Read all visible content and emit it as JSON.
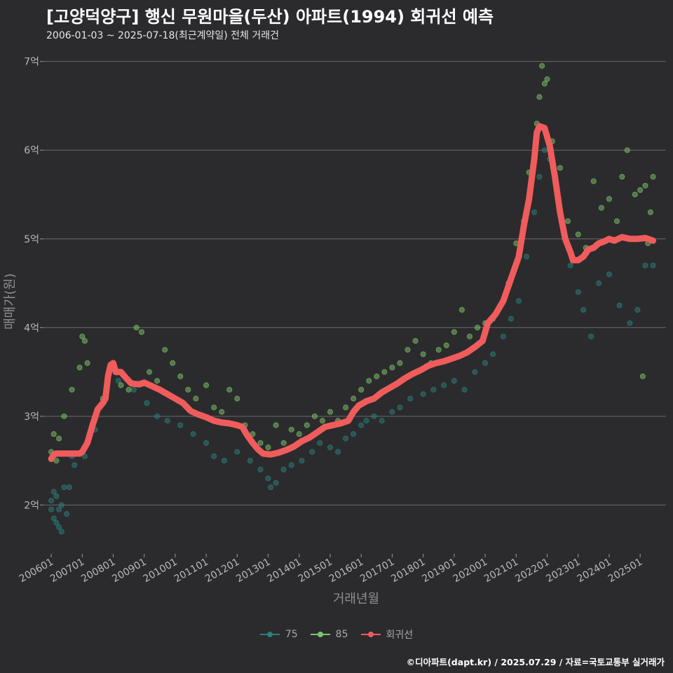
{
  "header": {
    "title": "[고양덕양구] 행신 무원마을(두산) 아파트(1994) 회귀선 예측",
    "subtitle": "2006-01-03 ~ 2025-07-18(최근계약일) 전체 거래건"
  },
  "credit": "©디아파트(dapt.kr) / 2025.07.29 / 자료=국토교통부 실거래가",
  "colors": {
    "background": "#2b2b2d",
    "grid": "#6b6b6b",
    "series_75": "#2c7f7b",
    "series_85": "#7ec46a",
    "regression": "#f05c5c"
  },
  "chart_data": {
    "type": "scatter",
    "xlabel": "거래년월",
    "ylabel": "매매가(원)",
    "x_range": [
      "2005-10",
      "2025-11"
    ],
    "ylim": [
      1.45,
      7.1
    ],
    "y_unit": "억",
    "y_ticks": [
      {
        "value": 2,
        "label": "2억"
      },
      {
        "value": 3,
        "label": "3억"
      },
      {
        "value": 4,
        "label": "4억"
      },
      {
        "value": 5,
        "label": "5억"
      },
      {
        "value": 6,
        "label": "6억"
      },
      {
        "value": 7,
        "label": "7억"
      }
    ],
    "x_ticks": [
      {
        "value": "2006-01",
        "label": "200601"
      },
      {
        "value": "2007-01",
        "label": "200701"
      },
      {
        "value": "2008-01",
        "label": "200801"
      },
      {
        "value": "2009-01",
        "label": "200901"
      },
      {
        "value": "2010-01",
        "label": "201001"
      },
      {
        "value": "2011-01",
        "label": "201101"
      },
      {
        "value": "2012-01",
        "label": "201201"
      },
      {
        "value": "2013-01",
        "label": "201301"
      },
      {
        "value": "2014-01",
        "label": "201401"
      },
      {
        "value": "2015-01",
        "label": "201501"
      },
      {
        "value": "2016-01",
        "label": "201601"
      },
      {
        "value": "2017-01",
        "label": "201701"
      },
      {
        "value": "2018-01",
        "label": "201801"
      },
      {
        "value": "2019-01",
        "label": "201901"
      },
      {
        "value": "2020-01",
        "label": "202001"
      },
      {
        "value": "2021-01",
        "label": "202101"
      },
      {
        "value": "2022-01",
        "label": "202201"
      },
      {
        "value": "2023-01",
        "label": "202301"
      },
      {
        "value": "2024-01",
        "label": "202401"
      },
      {
        "value": "2025-01",
        "label": "202501"
      }
    ],
    "legend": {
      "position": "bottom",
      "entries": [
        "75",
        "85",
        "회귀선"
      ]
    },
    "grid": true,
    "series": [
      {
        "name": "75",
        "kind": "points",
        "points": [
          [
            "2006-01",
            1.95
          ],
          [
            "2006-01",
            2.05
          ],
          [
            "2006-02",
            1.85
          ],
          [
            "2006-02",
            2.15
          ],
          [
            "2006-03",
            1.8
          ],
          [
            "2006-03",
            2.1
          ],
          [
            "2006-04",
            1.75
          ],
          [
            "2006-04",
            1.95
          ],
          [
            "2006-05",
            1.7
          ],
          [
            "2006-05",
            2.0
          ],
          [
            "2006-06",
            2.2
          ],
          [
            "2006-07",
            1.9
          ],
          [
            "2006-08",
            2.2
          ],
          [
            "2006-09",
            2.55
          ],
          [
            "2006-10",
            2.45
          ],
          [
            "2007-02",
            2.55
          ],
          [
            "2007-06",
            2.85
          ],
          [
            "2008-03",
            3.4
          ],
          [
            "2008-09",
            3.3
          ],
          [
            "2009-02",
            3.15
          ],
          [
            "2009-06",
            3.0
          ],
          [
            "2009-10",
            2.95
          ],
          [
            "2010-03",
            2.9
          ],
          [
            "2010-08",
            2.8
          ],
          [
            "2011-01",
            2.7
          ],
          [
            "2011-04",
            2.55
          ],
          [
            "2011-08",
            2.5
          ],
          [
            "2012-01",
            2.6
          ],
          [
            "2012-06",
            2.5
          ],
          [
            "2012-10",
            2.4
          ],
          [
            "2013-01",
            2.3
          ],
          [
            "2013-02",
            2.2
          ],
          [
            "2013-04",
            2.25
          ],
          [
            "2013-07",
            2.4
          ],
          [
            "2013-10",
            2.45
          ],
          [
            "2014-02",
            2.5
          ],
          [
            "2014-06",
            2.6
          ],
          [
            "2014-09",
            2.7
          ],
          [
            "2015-01",
            2.65
          ],
          [
            "2015-04",
            2.6
          ],
          [
            "2015-07",
            2.75
          ],
          [
            "2015-10",
            2.8
          ],
          [
            "2016-01",
            2.9
          ],
          [
            "2016-03",
            2.95
          ],
          [
            "2016-06",
            3.0
          ],
          [
            "2016-09",
            2.95
          ],
          [
            "2017-01",
            3.05
          ],
          [
            "2017-04",
            3.1
          ],
          [
            "2017-08",
            3.2
          ],
          [
            "2018-01",
            3.25
          ],
          [
            "2018-05",
            3.3
          ],
          [
            "2018-09",
            3.35
          ],
          [
            "2019-01",
            3.4
          ],
          [
            "2019-05",
            3.3
          ],
          [
            "2019-09",
            3.5
          ],
          [
            "2020-01",
            3.6
          ],
          [
            "2020-04",
            3.7
          ],
          [
            "2020-08",
            3.9
          ],
          [
            "2020-11",
            4.1
          ],
          [
            "2021-02",
            4.3
          ],
          [
            "2021-05",
            4.8
          ],
          [
            "2021-08",
            5.3
          ],
          [
            "2021-10",
            5.7
          ],
          [
            "2021-12",
            6.0
          ],
          [
            "2022-02",
            5.9
          ],
          [
            "2022-06",
            5.3
          ],
          [
            "2022-10",
            4.7
          ],
          [
            "2023-01",
            4.4
          ],
          [
            "2023-03",
            4.2
          ],
          [
            "2023-06",
            3.9
          ],
          [
            "2023-09",
            4.5
          ],
          [
            "2024-01",
            4.6
          ],
          [
            "2024-05",
            4.25
          ],
          [
            "2024-09",
            4.05
          ],
          [
            "2024-12",
            4.2
          ],
          [
            "2025-03",
            4.7
          ],
          [
            "2025-06",
            4.7
          ]
        ]
      },
      {
        "name": "85",
        "kind": "points",
        "points": [
          [
            "2006-01",
            2.6
          ],
          [
            "2006-02",
            2.8
          ],
          [
            "2006-03",
            2.5
          ],
          [
            "2006-04",
            2.75
          ],
          [
            "2006-06",
            3.0
          ],
          [
            "2006-09",
            3.3
          ],
          [
            "2006-12",
            3.55
          ],
          [
            "2007-01",
            3.9
          ],
          [
            "2007-02",
            3.85
          ],
          [
            "2007-03",
            3.6
          ],
          [
            "2007-09",
            3.2
          ],
          [
            "2008-01",
            3.55
          ],
          [
            "2008-04",
            3.35
          ],
          [
            "2008-07",
            3.3
          ],
          [
            "2008-10",
            4.0
          ],
          [
            "2008-12",
            3.95
          ],
          [
            "2009-03",
            3.5
          ],
          [
            "2009-06",
            3.4
          ],
          [
            "2009-09",
            3.75
          ],
          [
            "2009-12",
            3.6
          ],
          [
            "2010-03",
            3.45
          ],
          [
            "2010-06",
            3.3
          ],
          [
            "2010-09",
            3.2
          ],
          [
            "2011-01",
            3.35
          ],
          [
            "2011-04",
            3.1
          ],
          [
            "2011-07",
            3.05
          ],
          [
            "2011-10",
            3.3
          ],
          [
            "2012-01",
            3.2
          ],
          [
            "2012-04",
            2.9
          ],
          [
            "2012-07",
            2.8
          ],
          [
            "2012-10",
            2.7
          ],
          [
            "2013-01",
            2.65
          ],
          [
            "2013-04",
            2.9
          ],
          [
            "2013-07",
            2.7
          ],
          [
            "2013-10",
            2.85
          ],
          [
            "2014-01",
            2.8
          ],
          [
            "2014-04",
            2.9
          ],
          [
            "2014-07",
            3.0
          ],
          [
            "2014-10",
            2.95
          ],
          [
            "2015-01",
            3.05
          ],
          [
            "2015-04",
            2.95
          ],
          [
            "2015-07",
            3.1
          ],
          [
            "2015-10",
            3.2
          ],
          [
            "2016-01",
            3.3
          ],
          [
            "2016-04",
            3.4
          ],
          [
            "2016-07",
            3.45
          ],
          [
            "2016-10",
            3.5
          ],
          [
            "2017-01",
            3.55
          ],
          [
            "2017-04",
            3.6
          ],
          [
            "2017-07",
            3.75
          ],
          [
            "2017-10",
            3.85
          ],
          [
            "2018-01",
            3.7
          ],
          [
            "2018-04",
            3.6
          ],
          [
            "2018-07",
            3.75
          ],
          [
            "2018-10",
            3.8
          ],
          [
            "2019-01",
            3.95
          ],
          [
            "2019-04",
            4.2
          ],
          [
            "2019-07",
            3.9
          ],
          [
            "2019-10",
            4.0
          ],
          [
            "2020-01",
            4.05
          ],
          [
            "2020-04",
            4.1
          ],
          [
            "2020-07",
            4.25
          ],
          [
            "2020-10",
            4.5
          ],
          [
            "2021-01",
            4.95
          ],
          [
            "2021-04",
            5.2
          ],
          [
            "2021-06",
            5.75
          ],
          [
            "2021-09",
            6.3
          ],
          [
            "2021-10",
            6.6
          ],
          [
            "2021-11",
            6.95
          ],
          [
            "2021-12",
            6.75
          ],
          [
            "2022-01",
            6.8
          ],
          [
            "2022-03",
            6.1
          ],
          [
            "2022-06",
            5.8
          ],
          [
            "2022-09",
            5.2
          ],
          [
            "2023-01",
            5.05
          ],
          [
            "2023-04",
            4.9
          ],
          [
            "2023-07",
            5.65
          ],
          [
            "2023-10",
            5.35
          ],
          [
            "2024-01",
            5.45
          ],
          [
            "2024-04",
            5.2
          ],
          [
            "2024-06",
            5.7
          ],
          [
            "2024-08",
            6.0
          ],
          [
            "2024-11",
            5.5
          ],
          [
            "2025-01",
            5.55
          ],
          [
            "2025-03",
            5.6
          ],
          [
            "2025-05",
            5.3
          ],
          [
            "2025-06",
            5.7
          ],
          [
            "2025-04",
            4.95
          ],
          [
            "2025-02",
            3.45
          ]
        ]
      },
      {
        "name": "회귀선",
        "kind": "line",
        "points": [
          [
            "2006-01",
            2.52
          ],
          [
            "2006-02",
            2.57
          ],
          [
            "2006-03",
            2.58
          ],
          [
            "2006-06",
            2.58
          ],
          [
            "2006-09",
            2.58
          ],
          [
            "2006-12",
            2.58
          ],
          [
            "2007-01",
            2.6
          ],
          [
            "2007-02",
            2.65
          ],
          [
            "2007-03",
            2.7
          ],
          [
            "2007-05",
            2.9
          ],
          [
            "2007-07",
            3.08
          ],
          [
            "2007-09",
            3.15
          ],
          [
            "2007-10",
            3.2
          ],
          [
            "2007-11",
            3.45
          ],
          [
            "2007-12",
            3.58
          ],
          [
            "2008-01",
            3.6
          ],
          [
            "2008-02",
            3.5
          ],
          [
            "2008-04",
            3.5
          ],
          [
            "2008-06",
            3.43
          ],
          [
            "2008-08",
            3.37
          ],
          [
            "2008-11",
            3.36
          ],
          [
            "2009-01",
            3.38
          ],
          [
            "2009-04",
            3.34
          ],
          [
            "2009-07",
            3.3
          ],
          [
            "2009-10",
            3.25
          ],
          [
            "2010-01",
            3.2
          ],
          [
            "2010-04",
            3.15
          ],
          [
            "2010-07",
            3.06
          ],
          [
            "2010-10",
            3.02
          ],
          [
            "2011-01",
            2.99
          ],
          [
            "2011-04",
            2.95
          ],
          [
            "2011-07",
            2.93
          ],
          [
            "2011-10",
            2.92
          ],
          [
            "2012-01",
            2.9
          ],
          [
            "2012-03",
            2.88
          ],
          [
            "2012-05",
            2.78
          ],
          [
            "2012-07",
            2.7
          ],
          [
            "2012-09",
            2.63
          ],
          [
            "2012-11",
            2.58
          ],
          [
            "2013-02",
            2.57
          ],
          [
            "2013-05",
            2.59
          ],
          [
            "2013-08",
            2.62
          ],
          [
            "2013-11",
            2.66
          ],
          [
            "2014-02",
            2.72
          ],
          [
            "2014-05",
            2.76
          ],
          [
            "2014-08",
            2.82
          ],
          [
            "2014-11",
            2.88
          ],
          [
            "2015-02",
            2.9
          ],
          [
            "2015-05",
            2.92
          ],
          [
            "2015-08",
            2.95
          ],
          [
            "2015-10",
            3.05
          ],
          [
            "2015-12",
            3.12
          ],
          [
            "2016-03",
            3.17
          ],
          [
            "2016-06",
            3.2
          ],
          [
            "2016-09",
            3.27
          ],
          [
            "2016-12",
            3.32
          ],
          [
            "2017-03",
            3.37
          ],
          [
            "2017-06",
            3.43
          ],
          [
            "2017-09",
            3.48
          ],
          [
            "2017-12",
            3.52
          ],
          [
            "2018-03",
            3.57
          ],
          [
            "2018-06",
            3.6
          ],
          [
            "2018-09",
            3.62
          ],
          [
            "2018-12",
            3.65
          ],
          [
            "2019-03",
            3.68
          ],
          [
            "2019-06",
            3.72
          ],
          [
            "2019-09",
            3.78
          ],
          [
            "2019-12",
            3.85
          ],
          [
            "2020-02",
            4.05
          ],
          [
            "2020-05",
            4.15
          ],
          [
            "2020-08",
            4.3
          ],
          [
            "2020-11",
            4.55
          ],
          [
            "2021-02",
            4.8
          ],
          [
            "2021-04",
            5.15
          ],
          [
            "2021-06",
            5.45
          ],
          [
            "2021-08",
            5.9
          ],
          [
            "2021-09",
            6.2
          ],
          [
            "2021-10",
            6.27
          ],
          [
            "2021-12",
            6.25
          ],
          [
            "2022-02",
            6.05
          ],
          [
            "2022-04",
            5.7
          ],
          [
            "2022-06",
            5.3
          ],
          [
            "2022-08",
            5.0
          ],
          [
            "2022-10",
            4.85
          ],
          [
            "2022-11",
            4.76
          ],
          [
            "2023-01",
            4.76
          ],
          [
            "2023-03",
            4.8
          ],
          [
            "2023-05",
            4.88
          ],
          [
            "2023-07",
            4.9
          ],
          [
            "2023-09",
            4.95
          ],
          [
            "2023-11",
            4.97
          ],
          [
            "2024-01",
            5.0
          ],
          [
            "2024-03",
            4.98
          ],
          [
            "2024-06",
            5.02
          ],
          [
            "2024-09",
            5.0
          ],
          [
            "2024-12",
            5.0
          ],
          [
            "2025-03",
            5.01
          ],
          [
            "2025-06",
            4.98
          ]
        ]
      }
    ]
  }
}
